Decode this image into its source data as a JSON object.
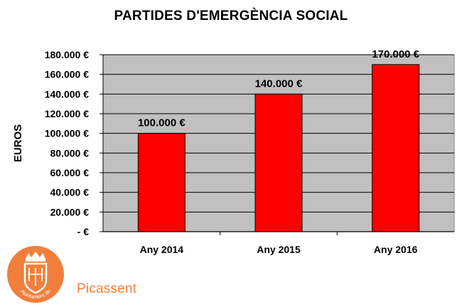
{
  "chart_data": {
    "type": "bar",
    "title": "PARTIDES D'EMERGÈNCIA SOCIAL",
    "xlabel": "",
    "ylabel": "EUROS",
    "categories": [
      "Any 2014",
      "Any 2015",
      "Any 2016"
    ],
    "values": [
      100000,
      140000,
      170000
    ],
    "value_labels": [
      "100.000 €",
      "140.000 €",
      "170.000 €"
    ],
    "ylim": [
      0,
      180000
    ],
    "yticks": [
      0,
      20000,
      40000,
      60000,
      80000,
      100000,
      120000,
      140000,
      160000,
      180000
    ],
    "ytick_labels": [
      "-    €",
      "20.000 €",
      "40.000 €",
      "60.000 €",
      "80.000 €",
      "100.000 €",
      "120.000 €",
      "140.000 €",
      "160.000 €",
      "180.000 €"
    ],
    "grid": true,
    "legend": "none",
    "colors": {
      "bar": "#ff0000",
      "plot_background": "#c0c0c0"
    }
  },
  "logo": {
    "text": "Picassent",
    "emblem_text": "Ajuntament de",
    "color": "#f07f3c"
  }
}
